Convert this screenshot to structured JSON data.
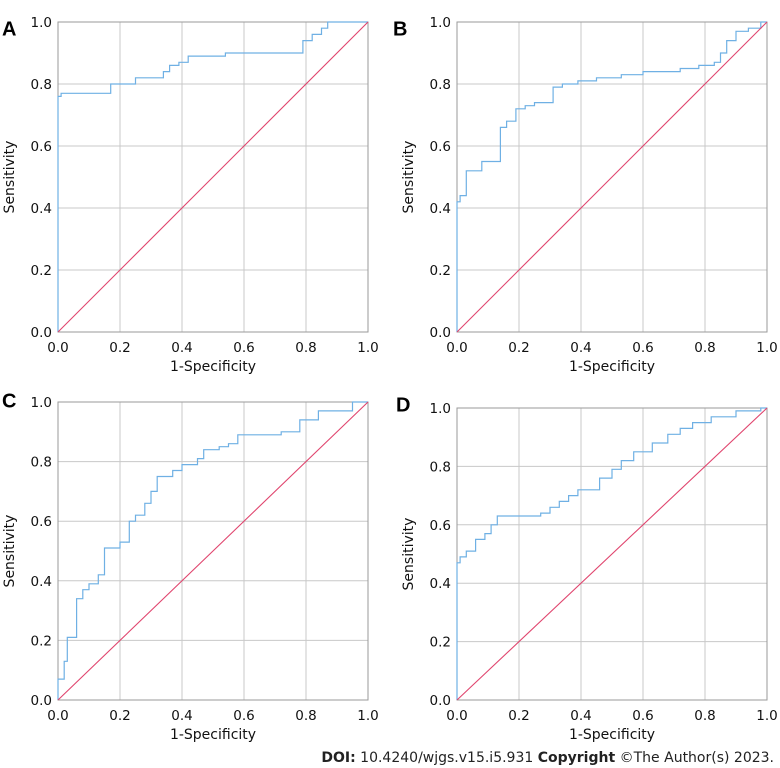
{
  "colors": {
    "roc": "#6fb0e4",
    "reference": "#e0456e",
    "grid": "#c8c8c8",
    "frame": "#9a9a9a"
  },
  "credit": {
    "doi_label": "DOI:",
    "doi_value": "10.4240/wjgs.v15.i5.931",
    "copyright_label": "Copyright",
    "copyright_value": "©The Author(s) 2023."
  },
  "chart_data": [
    {
      "panel": "A",
      "type": "line",
      "xlabel": "1-Specificity",
      "ylabel": "Sensitivity",
      "xlim": [
        0,
        1
      ],
      "ylim": [
        0,
        1
      ],
      "ticks": [
        "0.0",
        "0.2",
        "0.4",
        "0.6",
        "0.8",
        "1.0"
      ],
      "grid": true,
      "series": [
        {
          "style": "step",
          "x": [
            0,
            0,
            0.01,
            0.01,
            0.17,
            0.17,
            0.25,
            0.25,
            0.34,
            0.34,
            0.36,
            0.36,
            0.39,
            0.39,
            0.42,
            0.42,
            0.54,
            0.54,
            0.79,
            0.79,
            0.82,
            0.82,
            0.85,
            0.85,
            0.87,
            0.87,
            0.93,
            0.93,
            1.0
          ],
          "y": [
            0,
            0.76,
            0.76,
            0.77,
            0.77,
            0.8,
            0.8,
            0.82,
            0.82,
            0.84,
            0.84,
            0.86,
            0.86,
            0.87,
            0.87,
            0.89,
            0.89,
            0.9,
            0.9,
            0.94,
            0.94,
            0.96,
            0.96,
            0.98,
            0.98,
            1.0,
            1.0,
            1.0,
            1.0
          ]
        },
        {
          "style": "diagonal",
          "x": [
            0,
            1
          ],
          "y": [
            0,
            1
          ]
        }
      ]
    },
    {
      "panel": "B",
      "type": "line",
      "xlabel": "1-Specificity",
      "ylabel": "Sensitivity",
      "xlim": [
        0,
        1
      ],
      "ylim": [
        0,
        1
      ],
      "ticks": [
        "0.0",
        "0.2",
        "0.4",
        "0.6",
        "0.8",
        "1.0"
      ],
      "grid": true,
      "series": [
        {
          "style": "step",
          "x": [
            0,
            0,
            0.01,
            0.01,
            0.03,
            0.03,
            0.08,
            0.08,
            0.14,
            0.14,
            0.16,
            0.16,
            0.19,
            0.19,
            0.22,
            0.22,
            0.25,
            0.25,
            0.31,
            0.31,
            0.34,
            0.34,
            0.39,
            0.39,
            0.45,
            0.45,
            0.53,
            0.53,
            0.6,
            0.6,
            0.72,
            0.72,
            0.78,
            0.78,
            0.83,
            0.83,
            0.85,
            0.85,
            0.87,
            0.87,
            0.9,
            0.9,
            0.94,
            0.94,
            0.98,
            0.98,
            1.0
          ],
          "y": [
            0,
            0.42,
            0.42,
            0.44,
            0.44,
            0.52,
            0.52,
            0.55,
            0.55,
            0.66,
            0.66,
            0.68,
            0.68,
            0.72,
            0.72,
            0.73,
            0.73,
            0.74,
            0.74,
            0.79,
            0.79,
            0.8,
            0.8,
            0.81,
            0.81,
            0.82,
            0.82,
            0.83,
            0.83,
            0.84,
            0.84,
            0.85,
            0.85,
            0.86,
            0.86,
            0.87,
            0.87,
            0.9,
            0.9,
            0.94,
            0.94,
            0.97,
            0.97,
            0.98,
            0.98,
            1.0,
            1.0
          ]
        },
        {
          "style": "diagonal",
          "x": [
            0,
            1
          ],
          "y": [
            0,
            1
          ]
        }
      ]
    },
    {
      "panel": "C",
      "type": "line",
      "xlabel": "1-Specificity",
      "ylabel": "Sensitivity",
      "xlim": [
        0,
        1
      ],
      "ylim": [
        0,
        1
      ],
      "ticks": [
        "0.0",
        "0.2",
        "0.4",
        "0.6",
        "0.8",
        "1.0"
      ],
      "grid": true,
      "series": [
        {
          "style": "step",
          "x": [
            0,
            0,
            0.02,
            0.02,
            0.03,
            0.03,
            0.06,
            0.06,
            0.08,
            0.08,
            0.1,
            0.1,
            0.13,
            0.13,
            0.15,
            0.15,
            0.2,
            0.2,
            0.23,
            0.23,
            0.25,
            0.25,
            0.28,
            0.28,
            0.3,
            0.3,
            0.32,
            0.32,
            0.37,
            0.37,
            0.4,
            0.4,
            0.45,
            0.45,
            0.47,
            0.47,
            0.52,
            0.52,
            0.55,
            0.55,
            0.58,
            0.58,
            0.72,
            0.72,
            0.78,
            0.78,
            0.84,
            0.84,
            0.95,
            0.95,
            1.0
          ],
          "y": [
            0,
            0.07,
            0.07,
            0.13,
            0.13,
            0.21,
            0.21,
            0.34,
            0.34,
            0.37,
            0.37,
            0.39,
            0.39,
            0.42,
            0.42,
            0.51,
            0.51,
            0.53,
            0.53,
            0.6,
            0.6,
            0.62,
            0.62,
            0.66,
            0.66,
            0.7,
            0.7,
            0.75,
            0.75,
            0.77,
            0.77,
            0.79,
            0.79,
            0.81,
            0.81,
            0.84,
            0.84,
            0.85,
            0.85,
            0.86,
            0.86,
            0.89,
            0.89,
            0.9,
            0.9,
            0.94,
            0.94,
            0.97,
            0.97,
            1.0,
            1.0
          ]
        },
        {
          "style": "diagonal",
          "x": [
            0,
            1
          ],
          "y": [
            0,
            1
          ]
        }
      ]
    },
    {
      "panel": "D",
      "type": "line",
      "xlabel": "1-Specificity",
      "ylabel": "Sensitivity",
      "xlim": [
        0,
        1
      ],
      "ylim": [
        0,
        1
      ],
      "ticks": [
        "0.0",
        "0.2",
        "0.4",
        "0.6",
        "0.8",
        "1.0"
      ],
      "grid": true,
      "series": [
        {
          "style": "step",
          "x": [
            0,
            0,
            0.01,
            0.01,
            0.03,
            0.03,
            0.06,
            0.06,
            0.09,
            0.09,
            0.11,
            0.11,
            0.13,
            0.13,
            0.27,
            0.27,
            0.3,
            0.3,
            0.33,
            0.33,
            0.36,
            0.36,
            0.39,
            0.39,
            0.46,
            0.46,
            0.5,
            0.5,
            0.53,
            0.53,
            0.57,
            0.57,
            0.63,
            0.63,
            0.68,
            0.68,
            0.72,
            0.72,
            0.76,
            0.76,
            0.82,
            0.82,
            0.9,
            0.9,
            0.98,
            0.98,
            1.0
          ],
          "y": [
            0,
            0.47,
            0.47,
            0.49,
            0.49,
            0.51,
            0.51,
            0.55,
            0.55,
            0.57,
            0.57,
            0.6,
            0.6,
            0.63,
            0.63,
            0.64,
            0.64,
            0.66,
            0.66,
            0.68,
            0.68,
            0.7,
            0.7,
            0.72,
            0.72,
            0.76,
            0.76,
            0.79,
            0.79,
            0.82,
            0.82,
            0.85,
            0.85,
            0.88,
            0.88,
            0.91,
            0.91,
            0.93,
            0.93,
            0.95,
            0.95,
            0.97,
            0.97,
            0.99,
            0.99,
            1.0,
            1.0
          ]
        },
        {
          "style": "diagonal",
          "x": [
            0,
            1
          ],
          "y": [
            0,
            1
          ]
        }
      ]
    }
  ]
}
